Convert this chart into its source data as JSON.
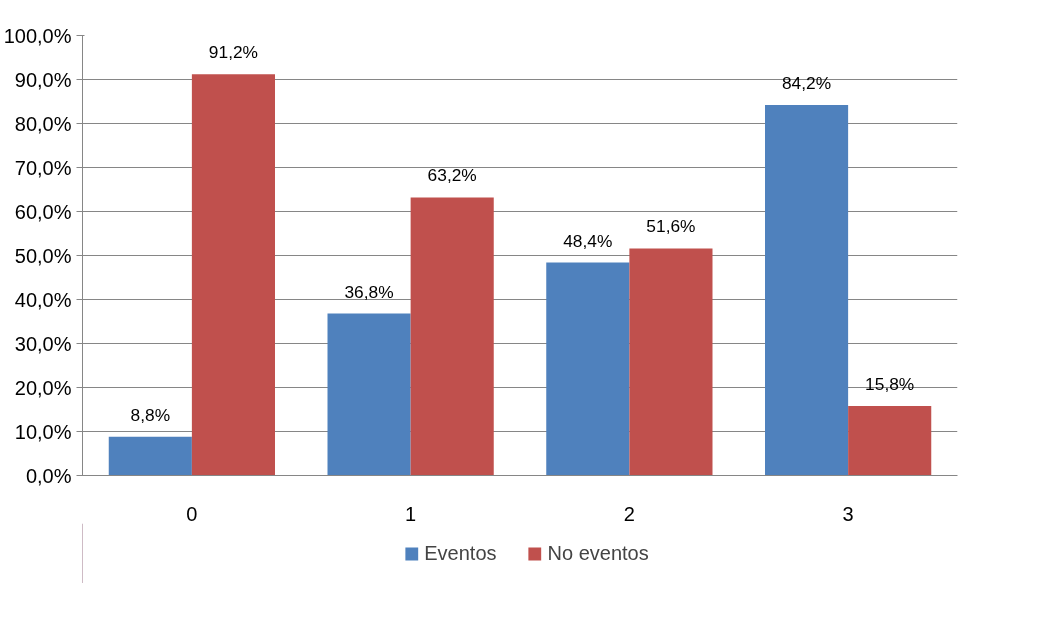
{
  "chart_data": {
    "type": "bar",
    "categories": [
      "0",
      "1",
      "2",
      "3"
    ],
    "series": [
      {
        "name": "Eventos",
        "color": "#4f81bd",
        "values": [
          8.8,
          36.8,
          48.4,
          84.2
        ],
        "value_labels": [
          "8,8%",
          "36,8%",
          "48,4%",
          "84,2%"
        ]
      },
      {
        "name": "No eventos",
        "color": "#c0504d",
        "values": [
          91.2,
          63.2,
          51.6,
          15.8
        ],
        "value_labels": [
          "91,2%",
          "63,2%",
          "51,6%",
          "15,8%"
        ]
      }
    ],
    "ylim": [
      0,
      100
    ],
    "yticks": [
      {
        "value": 0,
        "label": "0,0%"
      },
      {
        "value": 10,
        "label": "10,0%"
      },
      {
        "value": 20,
        "label": "20,0%"
      },
      {
        "value": 30,
        "label": "30,0%"
      },
      {
        "value": 40,
        "label": "40,0%"
      },
      {
        "value": 50,
        "label": "50,0%"
      },
      {
        "value": 60,
        "label": "60,0%"
      },
      {
        "value": 70,
        "label": "70,0%"
      },
      {
        "value": 80,
        "label": "80,0%"
      },
      {
        "value": 90,
        "label": "90,0%"
      },
      {
        "value": 100,
        "label": "100,0%"
      }
    ],
    "grid": "y",
    "legend": "bottom"
  }
}
